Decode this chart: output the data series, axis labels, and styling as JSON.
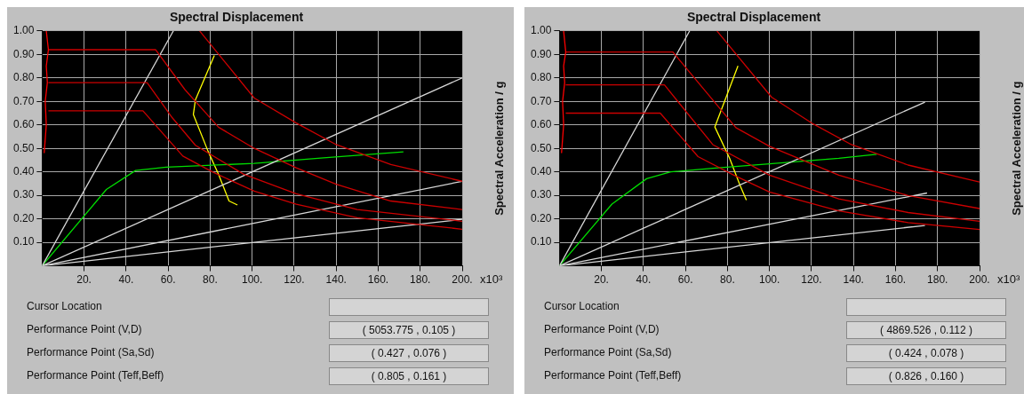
{
  "chart_data": [
    {
      "type": "line",
      "title": "Spectral Displacement",
      "ylabel": "Spectral Acceleration / g",
      "grid": true,
      "legend": false,
      "marker": "none",
      "xlim": [
        0,
        200
      ],
      "ylim": [
        0,
        1
      ],
      "xticks": [
        {
          "value": 20,
          "label": "20."
        },
        {
          "value": 40,
          "label": "40."
        },
        {
          "value": 60,
          "label": "60."
        },
        {
          "value": 80,
          "label": "80."
        },
        {
          "value": 100,
          "label": "100."
        },
        {
          "value": 120,
          "label": "120."
        },
        {
          "value": 140,
          "label": "140."
        },
        {
          "value": 160,
          "label": "160."
        },
        {
          "value": 180,
          "label": "180."
        },
        {
          "value": 200,
          "label": "200."
        }
      ],
      "yticks": [
        {
          "value": 0.1,
          "label": "0.10"
        },
        {
          "value": 0.2,
          "label": "0.20"
        },
        {
          "value": 0.3,
          "label": "0.30"
        },
        {
          "value": 0.4,
          "label": "0.40"
        },
        {
          "value": 0.5,
          "label": "0.50"
        },
        {
          "value": 0.6,
          "label": "0.60"
        },
        {
          "value": 0.7,
          "label": "0.70"
        },
        {
          "value": 0.8,
          "label": "0.80"
        },
        {
          "value": 0.9,
          "label": "0.90"
        },
        {
          "value": 1,
          "label": "1.00"
        }
      ],
      "annotations": [
        "x10³",
        "Cursor Location",
        "Performance Point (V,D)",
        "( 5053.775 , 0.105 )",
        "Performance Point (Sa,Sd)",
        "( 0.427 , 0.076 )",
        "Performance Point (Teff,Beff)",
        "( 0.805 , 0.161 )"
      ],
      "series": [
        {
          "color": "#ff0000",
          "x": [
            1,
            2,
            1.5,
            2.5,
            2,
            3,
            2
          ],
          "values": [
            0.48,
            0.6,
            0.7,
            0.78,
            0.85,
            0.92,
            1
          ]
        },
        {
          "color": "#cc0000",
          "x": [
            75,
            101,
            121,
            140,
            166,
            200
          ],
          "values": [
            1,
            0.714,
            0.608,
            0.516,
            0.431,
            0.36
          ]
        },
        {
          "color": "#cc0000",
          "x": [
            3,
            54,
            68,
            84,
            101,
            121,
            140,
            166,
            200
          ],
          "values": [
            0.92,
            0.92,
            0.75,
            0.59,
            0.5,
            0.417,
            0.347,
            0.276,
            0.24
          ]
        },
        {
          "color": "#cc0000",
          "x": [
            3,
            50,
            62,
            73,
            96,
            121,
            150,
            200
          ],
          "values": [
            0.78,
            0.78,
            0.63,
            0.513,
            0.39,
            0.307,
            0.24,
            0.19
          ]
        },
        {
          "color": "#cc0000",
          "x": [
            3,
            48,
            67,
            81,
            101,
            121,
            150,
            200
          ],
          "values": [
            0.66,
            0.66,
            0.467,
            0.4,
            0.318,
            0.262,
            0.205,
            0.156
          ]
        },
        {
          "color": "#d8d8d8",
          "x": [
            0,
            62.5
          ],
          "values": [
            0,
            1
          ]
        },
        {
          "color": "#d8d8d8",
          "x": [
            0,
            200
          ],
          "values": [
            0,
            0.8
          ]
        },
        {
          "color": "#d8d8d8",
          "x": [
            0,
            200
          ],
          "values": [
            0,
            0.36
          ]
        },
        {
          "color": "#d8d8d8",
          "x": [
            0,
            200
          ],
          "values": [
            0,
            0.198
          ]
        },
        {
          "color": "#00dd00",
          "x": [
            0,
            30.6,
            44.5,
            59,
            101,
            134,
            172
          ],
          "values": [
            0,
            0.325,
            0.406,
            0.42,
            0.436,
            0.46,
            0.485
          ]
        },
        {
          "color": "#ffff00",
          "x": [
            82,
            73,
            72,
            79,
            84,
            89,
            93
          ],
          "values": [
            0.895,
            0.707,
            0.644,
            0.488,
            0.389,
            0.276,
            0.259
          ]
        }
      ]
    },
    {
      "type": "line",
      "title": "Spectral Displacement",
      "ylabel": "Spectral Acceleration / g",
      "grid": true,
      "legend": false,
      "marker": "none",
      "xlim": [
        0,
        200
      ],
      "ylim": [
        0,
        1
      ],
      "xticks": [
        {
          "value": 20,
          "label": "20."
        },
        {
          "value": 40,
          "label": "40."
        },
        {
          "value": 60,
          "label": "60."
        },
        {
          "value": 80,
          "label": "80."
        },
        {
          "value": 100,
          "label": "100."
        },
        {
          "value": 120,
          "label": "120."
        },
        {
          "value": 140,
          "label": "140."
        },
        {
          "value": 160,
          "label": "160."
        },
        {
          "value": 180,
          "label": "180."
        },
        {
          "value": 200,
          "label": "200."
        }
      ],
      "yticks": [
        {
          "value": 0.1,
          "label": "0.10"
        },
        {
          "value": 0.2,
          "label": "0.20"
        },
        {
          "value": 0.3,
          "label": "0.30"
        },
        {
          "value": 0.4,
          "label": "0.40"
        },
        {
          "value": 0.5,
          "label": "0.50"
        },
        {
          "value": 0.6,
          "label": "0.60"
        },
        {
          "value": 0.7,
          "label": "0.70"
        },
        {
          "value": 0.8,
          "label": "0.80"
        },
        {
          "value": 0.9,
          "label": "0.90"
        },
        {
          "value": 1,
          "label": "1.00"
        }
      ],
      "annotations": [
        "x10³",
        "Cursor Location",
        "Performance Point (V,D)",
        "( 4869.526 , 0.112 )",
        "Performance Point (Sa,Sd)",
        "( 0.424 , 0.078 )",
        "Performance Point (Teff,Beff)",
        "( 0.826 , 0.160 )"
      ],
      "series": [
        {
          "color": "#ff0000",
          "x": [
            1,
            2,
            1.5,
            2.5,
            2,
            3,
            2
          ],
          "values": [
            0.48,
            0.6,
            0.7,
            0.78,
            0.85,
            0.91,
            1
          ]
        },
        {
          "color": "#cc0000",
          "x": [
            75,
            101,
            121,
            139,
            166,
            200
          ],
          "values": [
            1,
            0.718,
            0.603,
            0.516,
            0.429,
            0.357
          ]
        },
        {
          "color": "#cc0000",
          "x": [
            3,
            54,
            84,
            100,
            133,
            166,
            200
          ],
          "values": [
            0.91,
            0.91,
            0.588,
            0.509,
            0.386,
            0.299,
            0.244
          ]
        },
        {
          "color": "#cc0000",
          "x": [
            3,
            50,
            73,
            100,
            133,
            166,
            200
          ],
          "values": [
            0.77,
            0.77,
            0.516,
            0.386,
            0.285,
            0.227,
            0.19
          ]
        },
        {
          "color": "#cc0000",
          "x": [
            3,
            48,
            66,
            83,
            100,
            133,
            166,
            200
          ],
          "values": [
            0.65,
            0.65,
            0.465,
            0.386,
            0.314,
            0.234,
            0.184,
            0.155
          ]
        },
        {
          "color": "#d8d8d8",
          "x": [
            0,
            62
          ],
          "values": [
            0,
            1
          ]
        },
        {
          "color": "#d8d8d8",
          "x": [
            0,
            174
          ],
          "values": [
            0,
            0.697
          ]
        },
        {
          "color": "#d8d8d8",
          "x": [
            0,
            175
          ],
          "values": [
            0,
            0.31
          ]
        },
        {
          "color": "#d8d8d8",
          "x": [
            0,
            174
          ],
          "values": [
            0,
            0.172
          ]
        },
        {
          "color": "#00dd00",
          "x": [
            0,
            25,
            41.5,
            53,
            73,
            100,
            133,
            151
          ],
          "values": [
            0,
            0.263,
            0.371,
            0.4,
            0.415,
            0.434,
            0.458,
            0.475
          ]
        },
        {
          "color": "#ffff00",
          "x": [
            85,
            74,
            81,
            86,
            89
          ],
          "values": [
            0.851,
            0.591,
            0.458,
            0.342,
            0.28
          ]
        }
      ]
    }
  ]
}
